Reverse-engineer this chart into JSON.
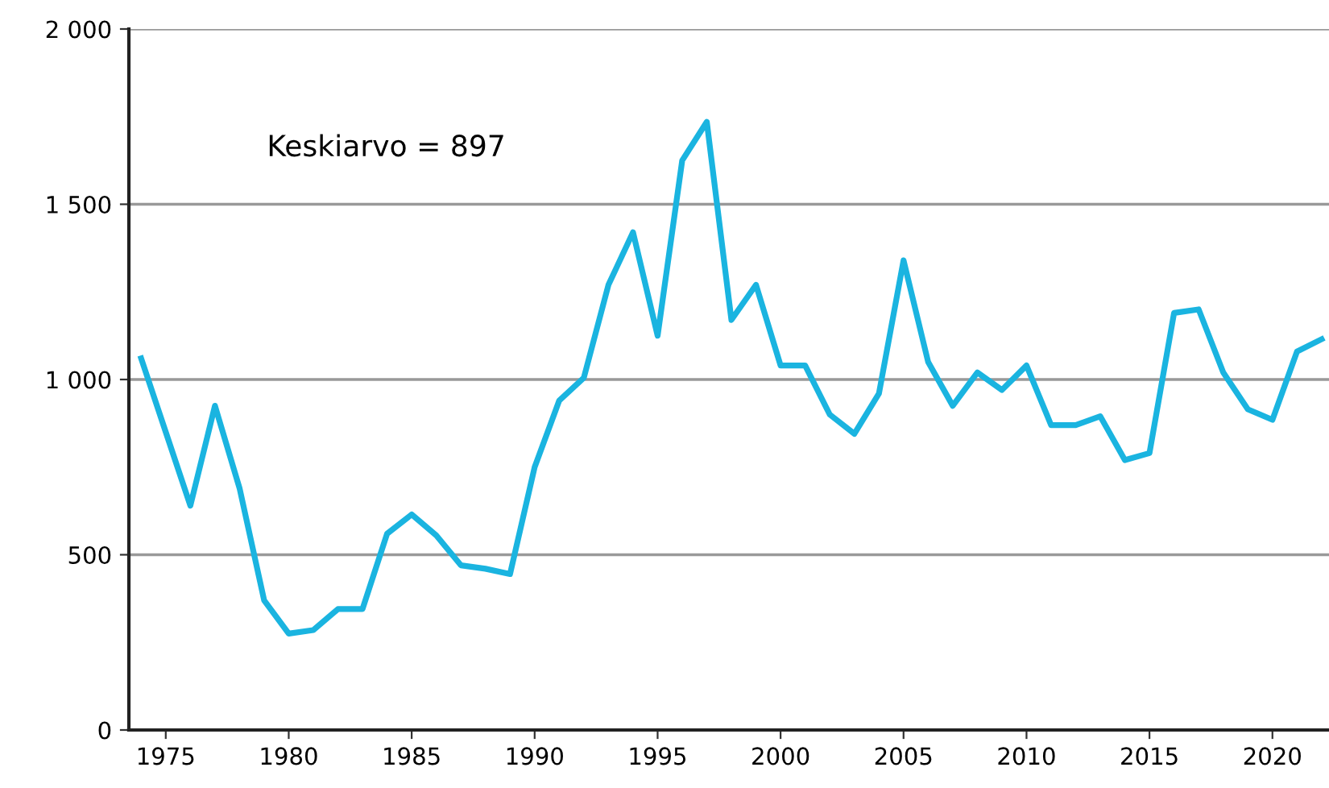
{
  "chart_data": {
    "type": "line",
    "x": [
      1974,
      1975,
      1976,
      1977,
      1978,
      1979,
      1980,
      1981,
      1982,
      1983,
      1984,
      1985,
      1986,
      1987,
      1988,
      1989,
      1990,
      1991,
      1992,
      1993,
      1994,
      1995,
      1996,
      1997,
      1998,
      1999,
      2000,
      2001,
      2002,
      2003,
      2004,
      2005,
      2006,
      2007,
      2008,
      2009,
      2010,
      2011,
      2012,
      2013,
      2014,
      2015,
      2016,
      2017,
      2018,
      2019,
      2020,
      2021,
      2022
    ],
    "series": [
      {
        "color": "#1ab4e0",
        "values": [
          1060,
          850,
          640,
          925,
          690,
          370,
          275,
          285,
          345,
          345,
          560,
          615,
          555,
          470,
          460,
          445,
          750,
          940,
          1005,
          1270,
          1420,
          1125,
          1625,
          1735,
          1170,
          1270,
          1040,
          1040,
          900,
          845,
          960,
          1340,
          1050,
          925,
          1020,
          970,
          1040,
          870,
          870,
          895,
          770,
          790,
          1190,
          1200,
          1020,
          915,
          885,
          1080,
          1115
        ]
      }
    ],
    "xlim": [
      1973.5,
      2022.3
    ],
    "xticks": [
      1975,
      1980,
      1985,
      1990,
      1995,
      2000,
      2005,
      2010,
      2015,
      2020
    ],
    "ylim": [
      0,
      2000
    ],
    "yticks": [
      0,
      500,
      {
        "value": 1000,
        "label": "1 000"
      },
      {
        "value": 1500,
        "label": "1 500"
      },
      {
        "value": 2000,
        "label": "2 000"
      }
    ],
    "grid": "y",
    "legend": false,
    "marker": "none",
    "line_style": "solid",
    "annotations": [
      "Keskiarvo = 897"
    ]
  }
}
